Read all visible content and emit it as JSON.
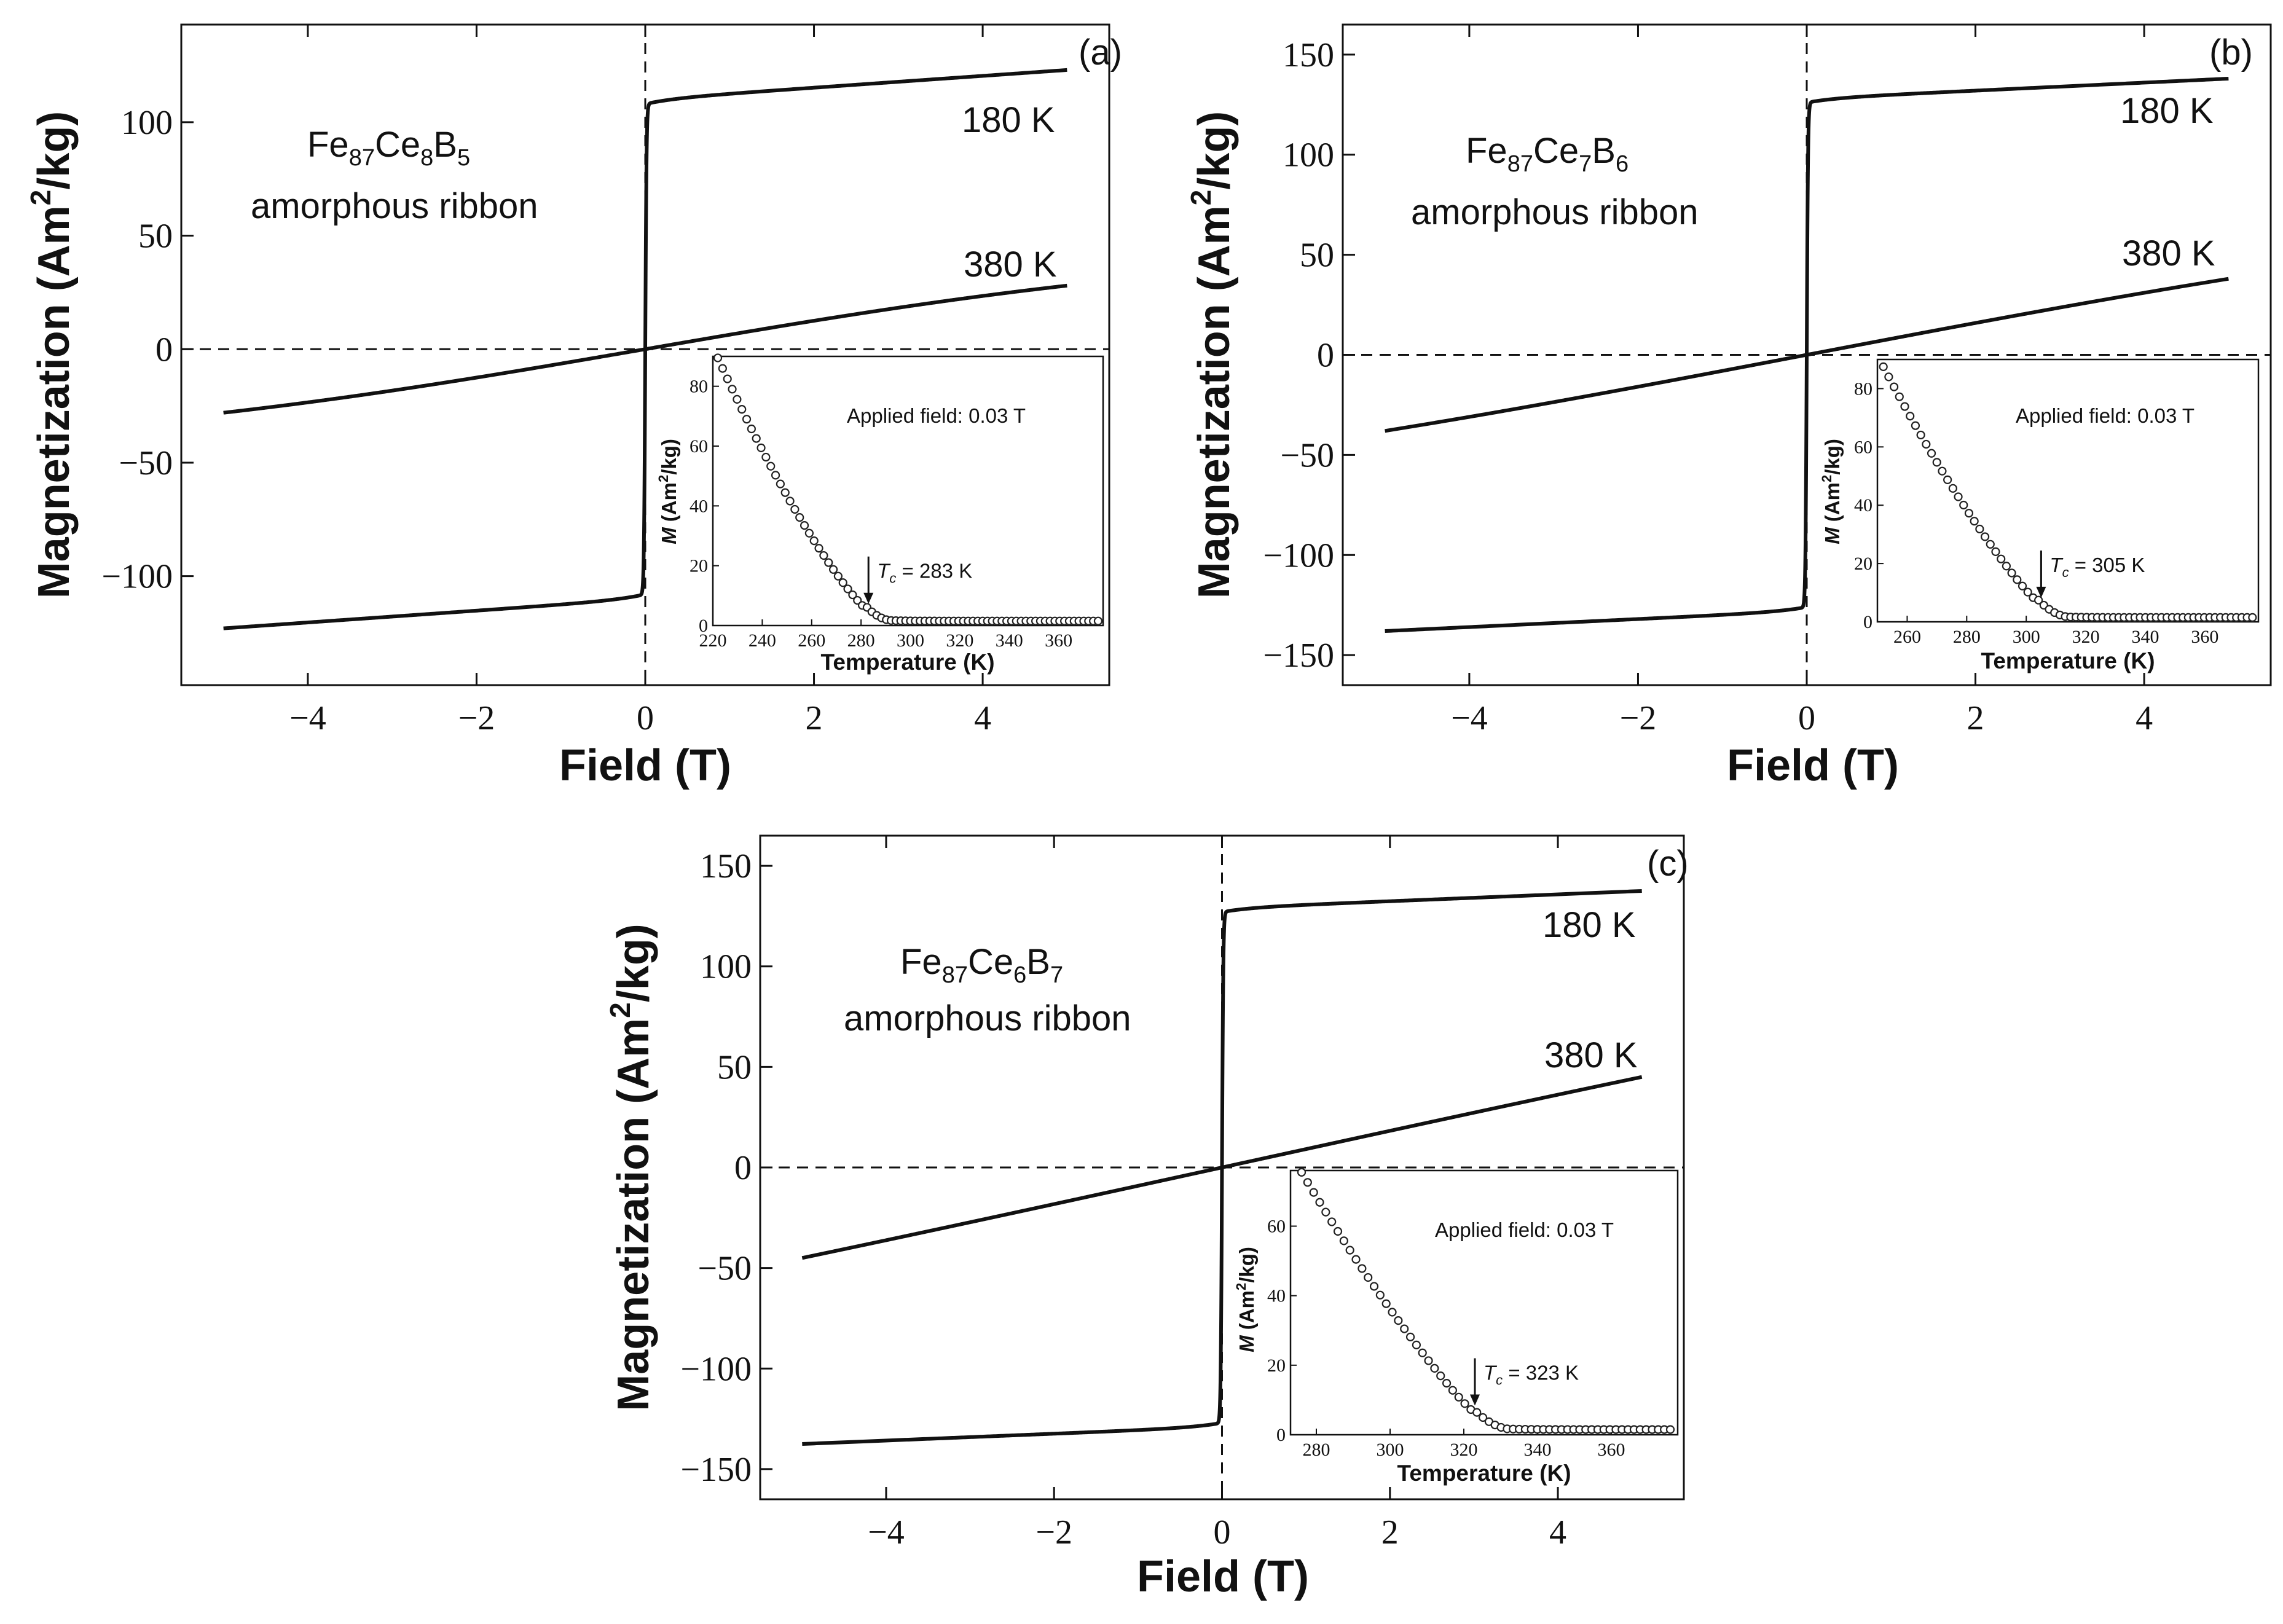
{
  "chart_data": [
    {
      "type": "line",
      "panel_label": "(a)",
      "xlabel": "Field (T)",
      "ylabel": "Magnetization (Am²/kg)",
      "ylabel_main": "Magnetization (Am",
      "ylabel_sup": "2",
      "ylabel_tail": "/kg)",
      "xlim": [
        -5.5,
        5.5
      ],
      "ylim": [
        -148,
        143
      ],
      "xticks": [
        -4,
        -2,
        0,
        2,
        4
      ],
      "xtick_labels": [
        "−4",
        "−2",
        "0",
        "2",
        "4"
      ],
      "yticks": [
        -100,
        -50,
        0,
        50,
        100
      ],
      "ytick_labels": [
        "−100",
        "−50",
        "0",
        "50",
        "100"
      ],
      "sample_label": {
        "el1": "Fe",
        "s1": "87",
        "el2": "Ce",
        "s2": "8",
        "el3": "B",
        "s3": "5",
        "line2": "amorphous ribbon"
      },
      "series": [
        {
          "name": "180 K",
          "kind": "ferro",
          "ms": 123,
          "mk": 110,
          "slope": 2.6,
          "mc": 108
        },
        {
          "name": "380 K",
          "kind": "para",
          "chi": 7.5,
          "sat": 1.0,
          "end": 28
        }
      ],
      "inset": {
        "xlabel": "Temperature (K)",
        "ylabel": "M (Am²/kg)",
        "ylabel_m": "M",
        "ylabel_rest": " (Am",
        "ylabel_sup": "2",
        "ylabel_tail": "/kg)",
        "xlim": [
          220,
          378
        ],
        "ylim": [
          0,
          90
        ],
        "xticks": [
          220,
          240,
          260,
          280,
          300,
          320,
          340,
          360
        ],
        "xtick_labels": [
          "220",
          "240",
          "260",
          "280",
          "300",
          "320",
          "340",
          "360"
        ],
        "yticks": [
          0,
          20,
          40,
          60,
          80
        ],
        "ytick_labels": [
          "0",
          "20",
          "40",
          "60",
          "80"
        ],
        "field_text": "Applied field: 0.03 T",
        "tc_value": 283,
        "tc_text": " = 283 K",
        "tc_symbol": "T",
        "tc_sub": "c",
        "curve": {
          "t_start": 222,
          "t_end": 376,
          "m0": 88,
          "t_knee": 292,
          "a": 1.45,
          "floor": 1.5,
          "w": 5.5,
          "pts": 80
        }
      }
    },
    {
      "type": "line",
      "panel_label": "(b)",
      "xlabel": "Field (T)",
      "ylabel": "Magnetization (Am²/kg)",
      "ylabel_main": "Magnetization (Am",
      "ylabel_sup": "2",
      "ylabel_tail": "/kg)",
      "xlim": [
        -5.5,
        5.5
      ],
      "ylim": [
        -165,
        165
      ],
      "xticks": [
        -4,
        -2,
        0,
        2,
        4
      ],
      "xtick_labels": [
        "−4",
        "−2",
        "0",
        "2",
        "4"
      ],
      "yticks": [
        -150,
        -100,
        -50,
        0,
        50,
        100,
        150
      ],
      "ytick_labels": [
        "−150",
        "−100",
        "−50",
        "0",
        "50",
        "100",
        "150"
      ],
      "sample_label": {
        "el1": "Fe",
        "s1": "87",
        "el2": "Ce",
        "s2": "7",
        "el3": "B",
        "s3": "6",
        "line2": "amorphous ribbon"
      },
      "series": [
        {
          "name": "180 K",
          "kind": "ferro",
          "ms": 138,
          "mk": 128,
          "slope": 2.0,
          "mc": 126
        },
        {
          "name": "380 K",
          "kind": "para",
          "chi": 12.0,
          "sat": 1.0,
          "end": 38
        }
      ],
      "inset": {
        "xlabel": "Temperature (K)",
        "ylabel": "M (Am²/kg)",
        "ylabel_m": "M",
        "ylabel_rest": " (Am",
        "ylabel_sup": "2",
        "ylabel_tail": "/kg)",
        "xlim": [
          250,
          378
        ],
        "ylim": [
          0,
          90
        ],
        "xticks": [
          260,
          280,
          300,
          320,
          340,
          360
        ],
        "xtick_labels": [
          "260",
          "280",
          "300",
          "320",
          "340",
          "360"
        ],
        "yticks": [
          0,
          20,
          40,
          60,
          80
        ],
        "ytick_labels": [
          "0",
          "20",
          "40",
          "60",
          "80"
        ],
        "field_text": "Applied field: 0.03 T",
        "tc_value": 305,
        "tc_text": " = 305 K",
        "tc_symbol": "T",
        "tc_sub": "c",
        "curve": {
          "t_start": 252,
          "t_end": 376,
          "m0": 86,
          "t_knee": 314,
          "a": 1.4,
          "floor": 1.5,
          "w": 5.5,
          "pts": 70
        }
      }
    },
    {
      "type": "line",
      "panel_label": "(c)",
      "xlabel": "Field (T)",
      "ylabel": "Magnetization (Am²/kg)",
      "ylabel_main": "Magnetization (Am",
      "ylabel_sup": "2",
      "ylabel_tail": "/kg)",
      "xlim": [
        -5.5,
        5.5
      ],
      "ylim": [
        -165,
        165
      ],
      "xticks": [
        -4,
        -2,
        0,
        2,
        4
      ],
      "xtick_labels": [
        "−4",
        "−2",
        "0",
        "2",
        "4"
      ],
      "yticks": [
        -150,
        -100,
        -50,
        0,
        50,
        100,
        150
      ],
      "ytick_labels": [
        "−150",
        "−100",
        "−50",
        "0",
        "50",
        "100",
        "150"
      ],
      "sample_label": {
        "el1": "Fe",
        "s1": "87",
        "el2": "Ce",
        "s2": "6",
        "el3": "B",
        "s3": "7",
        "line2": "amorphous ribbon"
      },
      "series": [
        {
          "name": "180 K",
          "kind": "ferro",
          "ms": 137,
          "mk": 129,
          "slope": 1.7,
          "mc": 127
        },
        {
          "name": "380 K",
          "kind": "para",
          "chi": 24.0,
          "sat": 1.0,
          "end": 45
        }
      ],
      "inset": {
        "xlabel": "Temperature (K)",
        "ylabel": "M (Am²/kg)",
        "ylabel_m": "M",
        "ylabel_rest": " (Am",
        "ylabel_sup": "2",
        "ylabel_tail": "/kg)",
        "xlim": [
          273,
          378
        ],
        "ylim": [
          0,
          76
        ],
        "xticks": [
          280,
          300,
          320,
          340,
          360
        ],
        "xtick_labels": [
          "280",
          "300",
          "320",
          "340",
          "360"
        ],
        "yticks": [
          0,
          20,
          40,
          60
        ],
        "ytick_labels": [
          "0",
          "20",
          "40",
          "60"
        ],
        "field_text": "Applied field: 0.03 T",
        "tc_value": 323,
        "tc_text": " = 323 K",
        "tc_symbol": "T",
        "tc_sub": "c",
        "curve": {
          "t_start": 276,
          "t_end": 376,
          "m0": 74,
          "t_knee": 332,
          "a": 1.35,
          "floor": 1.5,
          "w": 5.0,
          "pts": 62
        }
      }
    }
  ]
}
